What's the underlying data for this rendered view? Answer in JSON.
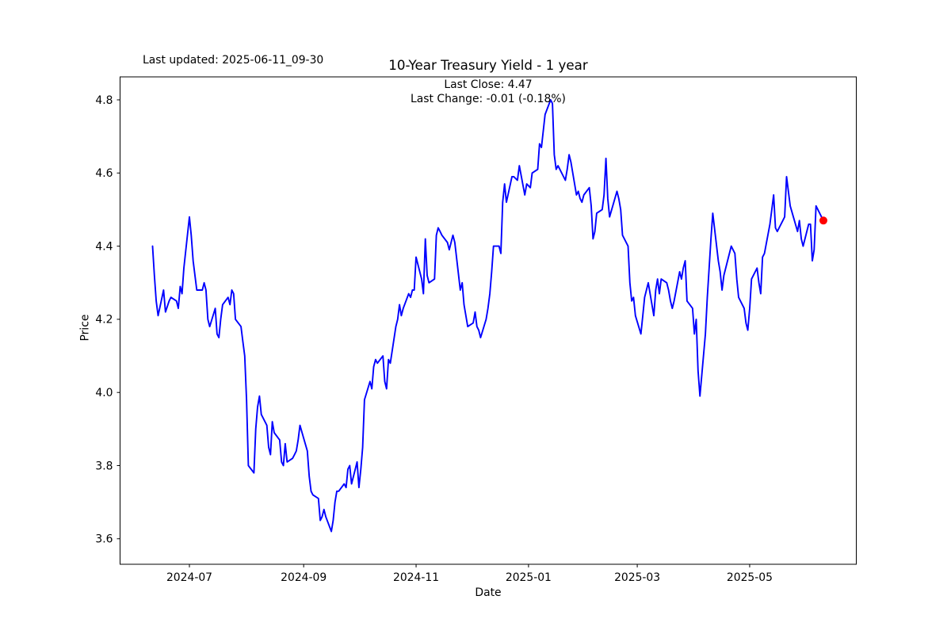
{
  "header": {
    "last_updated_label": "Last updated: 2025-06-11_09-30",
    "title": "10-Year Treasury Yield - 1 year",
    "subtitle_line1": "Last Close: 4.47",
    "subtitle_line2": "Last Change: -0.01 (-0.18%)"
  },
  "chart_data": {
    "type": "line",
    "title": "10-Year Treasury Yield - 1 year",
    "xlabel": "Date",
    "ylabel": "Price",
    "last_close": 4.47,
    "last_change": -0.01,
    "last_change_pct": "-0.18%",
    "line_color": "#0000ff",
    "marker_color": "#ff0000",
    "grid": false,
    "legend": "none",
    "ylim": [
      3.53,
      4.863
    ],
    "xlim": [
      "2024-05-24",
      "2025-06-28"
    ],
    "y_ticks": [
      {
        "value": 4.8,
        "label": "4.8"
      },
      {
        "value": 4.6,
        "label": "4.6"
      },
      {
        "value": 4.4,
        "label": "4.4"
      },
      {
        "value": 4.2,
        "label": "4.2"
      },
      {
        "value": 4.0,
        "label": "4.0"
      },
      {
        "value": 3.8,
        "label": "3.8"
      },
      {
        "value": 3.6,
        "label": "3.6"
      }
    ],
    "x_ticks": [
      {
        "date": "2024-07-01",
        "label": "2024-07"
      },
      {
        "date": "2024-09-01",
        "label": "2024-09"
      },
      {
        "date": "2024-11-01",
        "label": "2024-11"
      },
      {
        "date": "2025-01-01",
        "label": "2025-01"
      },
      {
        "date": "2025-03-01",
        "label": "2025-03"
      },
      {
        "date": "2025-05-01",
        "label": "2025-05"
      }
    ],
    "last_point": {
      "date": "2025-06-10",
      "value": 4.47
    },
    "series": [
      {
        "name": "10-Year Treasury Yield",
        "points": [
          [
            "2024-06-11",
            4.4
          ],
          [
            "2024-06-12",
            4.32
          ],
          [
            "2024-06-13",
            4.25
          ],
          [
            "2024-06-14",
            4.21
          ],
          [
            "2024-06-17",
            4.28
          ],
          [
            "2024-06-18",
            4.22
          ],
          [
            "2024-06-20",
            4.25
          ],
          [
            "2024-06-21",
            4.26
          ],
          [
            "2024-06-24",
            4.25
          ],
          [
            "2024-06-25",
            4.23
          ],
          [
            "2024-06-26",
            4.29
          ],
          [
            "2024-06-27",
            4.27
          ],
          [
            "2024-06-28",
            4.34
          ],
          [
            "2024-07-01",
            4.48
          ],
          [
            "2024-07-02",
            4.43
          ],
          [
            "2024-07-03",
            4.36
          ],
          [
            "2024-07-05",
            4.28
          ],
          [
            "2024-07-08",
            4.28
          ],
          [
            "2024-07-09",
            4.3
          ],
          [
            "2024-07-10",
            4.28
          ],
          [
            "2024-07-11",
            4.2
          ],
          [
            "2024-07-12",
            4.18
          ],
          [
            "2024-07-15",
            4.23
          ],
          [
            "2024-07-16",
            4.16
          ],
          [
            "2024-07-17",
            4.15
          ],
          [
            "2024-07-18",
            4.2
          ],
          [
            "2024-07-19",
            4.24
          ],
          [
            "2024-07-22",
            4.26
          ],
          [
            "2024-07-23",
            4.24
          ],
          [
            "2024-07-24",
            4.28
          ],
          [
            "2024-07-25",
            4.27
          ],
          [
            "2024-07-26",
            4.2
          ],
          [
            "2024-07-29",
            4.18
          ],
          [
            "2024-07-30",
            4.14
          ],
          [
            "2024-07-31",
            4.1
          ],
          [
            "2024-08-01",
            3.98
          ],
          [
            "2024-08-02",
            3.8
          ],
          [
            "2024-08-05",
            3.78
          ],
          [
            "2024-08-06",
            3.9
          ],
          [
            "2024-08-07",
            3.96
          ],
          [
            "2024-08-08",
            3.99
          ],
          [
            "2024-08-09",
            3.94
          ],
          [
            "2024-08-12",
            3.91
          ],
          [
            "2024-08-13",
            3.85
          ],
          [
            "2024-08-14",
            3.83
          ],
          [
            "2024-08-15",
            3.92
          ],
          [
            "2024-08-16",
            3.89
          ],
          [
            "2024-08-19",
            3.87
          ],
          [
            "2024-08-20",
            3.81
          ],
          [
            "2024-08-21",
            3.8
          ],
          [
            "2024-08-22",
            3.86
          ],
          [
            "2024-08-23",
            3.81
          ],
          [
            "2024-08-26",
            3.82
          ],
          [
            "2024-08-27",
            3.83
          ],
          [
            "2024-08-28",
            3.84
          ],
          [
            "2024-08-29",
            3.87
          ],
          [
            "2024-08-30",
            3.91
          ],
          [
            "2024-09-03",
            3.84
          ],
          [
            "2024-09-04",
            3.77
          ],
          [
            "2024-09-05",
            3.73
          ],
          [
            "2024-09-06",
            3.72
          ],
          [
            "2024-09-09",
            3.71
          ],
          [
            "2024-09-10",
            3.65
          ],
          [
            "2024-09-11",
            3.66
          ],
          [
            "2024-09-12",
            3.68
          ],
          [
            "2024-09-13",
            3.66
          ],
          [
            "2024-09-16",
            3.62
          ],
          [
            "2024-09-17",
            3.65
          ],
          [
            "2024-09-18",
            3.7
          ],
          [
            "2024-09-19",
            3.73
          ],
          [
            "2024-09-20",
            3.73
          ],
          [
            "2024-09-23",
            3.75
          ],
          [
            "2024-09-24",
            3.74
          ],
          [
            "2024-09-25",
            3.79
          ],
          [
            "2024-09-26",
            3.8
          ],
          [
            "2024-09-27",
            3.75
          ],
          [
            "2024-09-30",
            3.81
          ],
          [
            "2024-10-01",
            3.74
          ],
          [
            "2024-10-02",
            3.79
          ],
          [
            "2024-10-03",
            3.85
          ],
          [
            "2024-10-04",
            3.98
          ],
          [
            "2024-10-07",
            4.03
          ],
          [
            "2024-10-08",
            4.01
          ],
          [
            "2024-10-09",
            4.07
          ],
          [
            "2024-10-10",
            4.09
          ],
          [
            "2024-10-11",
            4.08
          ],
          [
            "2024-10-14",
            4.1
          ],
          [
            "2024-10-15",
            4.03
          ],
          [
            "2024-10-16",
            4.01
          ],
          [
            "2024-10-17",
            4.09
          ],
          [
            "2024-10-18",
            4.08
          ],
          [
            "2024-10-21",
            4.18
          ],
          [
            "2024-10-22",
            4.2
          ],
          [
            "2024-10-23",
            4.24
          ],
          [
            "2024-10-24",
            4.21
          ],
          [
            "2024-10-25",
            4.23
          ],
          [
            "2024-10-28",
            4.27
          ],
          [
            "2024-10-29",
            4.26
          ],
          [
            "2024-10-30",
            4.28
          ],
          [
            "2024-10-31",
            4.28
          ],
          [
            "2024-11-01",
            4.37
          ],
          [
            "2024-11-04",
            4.31
          ],
          [
            "2024-11-05",
            4.27
          ],
          [
            "2024-11-06",
            4.42
          ],
          [
            "2024-11-07",
            4.32
          ],
          [
            "2024-11-08",
            4.3
          ],
          [
            "2024-11-11",
            4.31
          ],
          [
            "2024-11-12",
            4.43
          ],
          [
            "2024-11-13",
            4.45
          ],
          [
            "2024-11-14",
            4.44
          ],
          [
            "2024-11-15",
            4.43
          ],
          [
            "2024-11-18",
            4.41
          ],
          [
            "2024-11-19",
            4.39
          ],
          [
            "2024-11-20",
            4.41
          ],
          [
            "2024-11-21",
            4.43
          ],
          [
            "2024-11-22",
            4.41
          ],
          [
            "2024-11-25",
            4.28
          ],
          [
            "2024-11-26",
            4.3
          ],
          [
            "2024-11-27",
            4.24
          ],
          [
            "2024-11-29",
            4.18
          ],
          [
            "2024-12-02",
            4.19
          ],
          [
            "2024-12-03",
            4.22
          ],
          [
            "2024-12-04",
            4.18
          ],
          [
            "2024-12-05",
            4.17
          ],
          [
            "2024-12-06",
            4.15
          ],
          [
            "2024-12-09",
            4.2
          ],
          [
            "2024-12-10",
            4.23
          ],
          [
            "2024-12-11",
            4.27
          ],
          [
            "2024-12-12",
            4.33
          ],
          [
            "2024-12-13",
            4.4
          ],
          [
            "2024-12-16",
            4.4
          ],
          [
            "2024-12-17",
            4.38
          ],
          [
            "2024-12-18",
            4.52
          ],
          [
            "2024-12-19",
            4.57
          ],
          [
            "2024-12-20",
            4.52
          ],
          [
            "2024-12-23",
            4.59
          ],
          [
            "2024-12-24",
            4.59
          ],
          [
            "2024-12-26",
            4.58
          ],
          [
            "2024-12-27",
            4.62
          ],
          [
            "2024-12-30",
            4.54
          ],
          [
            "2024-12-31",
            4.57
          ],
          [
            "2025-01-02",
            4.56
          ],
          [
            "2025-01-03",
            4.6
          ],
          [
            "2025-01-06",
            4.61
          ],
          [
            "2025-01-07",
            4.68
          ],
          [
            "2025-01-08",
            4.67
          ],
          [
            "2025-01-10",
            4.76
          ],
          [
            "2025-01-13",
            4.8
          ],
          [
            "2025-01-14",
            4.79
          ],
          [
            "2025-01-15",
            4.65
          ],
          [
            "2025-01-16",
            4.61
          ],
          [
            "2025-01-17",
            4.62
          ],
          [
            "2025-01-21",
            4.58
          ],
          [
            "2025-01-22",
            4.61
          ],
          [
            "2025-01-23",
            4.65
          ],
          [
            "2025-01-24",
            4.63
          ],
          [
            "2025-01-27",
            4.54
          ],
          [
            "2025-01-28",
            4.55
          ],
          [
            "2025-01-29",
            4.53
          ],
          [
            "2025-01-30",
            4.52
          ],
          [
            "2025-01-31",
            4.54
          ],
          [
            "2025-02-03",
            4.56
          ],
          [
            "2025-02-04",
            4.51
          ],
          [
            "2025-02-05",
            4.42
          ],
          [
            "2025-02-06",
            4.44
          ],
          [
            "2025-02-07",
            4.49
          ],
          [
            "2025-02-10",
            4.5
          ],
          [
            "2025-02-11",
            4.54
          ],
          [
            "2025-02-12",
            4.64
          ],
          [
            "2025-02-13",
            4.53
          ],
          [
            "2025-02-14",
            4.48
          ],
          [
            "2025-02-18",
            4.55
          ],
          [
            "2025-02-19",
            4.53
          ],
          [
            "2025-02-20",
            4.5
          ],
          [
            "2025-02-21",
            4.43
          ],
          [
            "2025-02-24",
            4.4
          ],
          [
            "2025-02-25",
            4.3
          ],
          [
            "2025-02-26",
            4.25
          ],
          [
            "2025-02-27",
            4.26
          ],
          [
            "2025-02-28",
            4.21
          ],
          [
            "2025-03-03",
            4.16
          ],
          [
            "2025-03-04",
            4.21
          ],
          [
            "2025-03-05",
            4.26
          ],
          [
            "2025-03-06",
            4.28
          ],
          [
            "2025-03-07",
            4.3
          ],
          [
            "2025-03-10",
            4.21
          ],
          [
            "2025-03-11",
            4.28
          ],
          [
            "2025-03-12",
            4.31
          ],
          [
            "2025-03-13",
            4.27
          ],
          [
            "2025-03-14",
            4.31
          ],
          [
            "2025-03-17",
            4.3
          ],
          [
            "2025-03-18",
            4.28
          ],
          [
            "2025-03-19",
            4.25
          ],
          [
            "2025-03-20",
            4.23
          ],
          [
            "2025-03-21",
            4.25
          ],
          [
            "2025-03-24",
            4.33
          ],
          [
            "2025-03-25",
            4.31
          ],
          [
            "2025-03-26",
            4.34
          ],
          [
            "2025-03-27",
            4.36
          ],
          [
            "2025-03-28",
            4.25
          ],
          [
            "2025-03-31",
            4.23
          ],
          [
            "2025-04-01",
            4.16
          ],
          [
            "2025-04-02",
            4.2
          ],
          [
            "2025-04-03",
            4.06
          ],
          [
            "2025-04-04",
            3.99
          ],
          [
            "2025-04-07",
            4.16
          ],
          [
            "2025-04-08",
            4.26
          ],
          [
            "2025-04-09",
            4.34
          ],
          [
            "2025-04-10",
            4.42
          ],
          [
            "2025-04-11",
            4.49
          ],
          [
            "2025-04-14",
            4.36
          ],
          [
            "2025-04-15",
            4.33
          ],
          [
            "2025-04-16",
            4.28
          ],
          [
            "2025-04-17",
            4.32
          ],
          [
            "2025-04-21",
            4.4
          ],
          [
            "2025-04-22",
            4.39
          ],
          [
            "2025-04-23",
            4.38
          ],
          [
            "2025-04-24",
            4.31
          ],
          [
            "2025-04-25",
            4.26
          ],
          [
            "2025-04-28",
            4.23
          ],
          [
            "2025-04-29",
            4.19
          ],
          [
            "2025-04-30",
            4.17
          ],
          [
            "2025-05-01",
            4.23
          ],
          [
            "2025-05-02",
            4.31
          ],
          [
            "2025-05-05",
            4.34
          ],
          [
            "2025-05-06",
            4.3
          ],
          [
            "2025-05-07",
            4.27
          ],
          [
            "2025-05-08",
            4.37
          ],
          [
            "2025-05-09",
            4.38
          ],
          [
            "2025-05-12",
            4.46
          ],
          [
            "2025-05-13",
            4.5
          ],
          [
            "2025-05-14",
            4.54
          ],
          [
            "2025-05-15",
            4.45
          ],
          [
            "2025-05-16",
            4.44
          ],
          [
            "2025-05-19",
            4.47
          ],
          [
            "2025-05-20",
            4.48
          ],
          [
            "2025-05-21",
            4.59
          ],
          [
            "2025-05-22",
            4.55
          ],
          [
            "2025-05-23",
            4.51
          ],
          [
            "2025-05-27",
            4.44
          ],
          [
            "2025-05-28",
            4.47
          ],
          [
            "2025-05-29",
            4.42
          ],
          [
            "2025-05-30",
            4.4
          ],
          [
            "2025-06-02",
            4.46
          ],
          [
            "2025-06-03",
            4.46
          ],
          [
            "2025-06-04",
            4.36
          ],
          [
            "2025-06-05",
            4.39
          ],
          [
            "2025-06-06",
            4.51
          ],
          [
            "2025-06-09",
            4.48
          ],
          [
            "2025-06-10",
            4.47
          ]
        ]
      }
    ]
  }
}
